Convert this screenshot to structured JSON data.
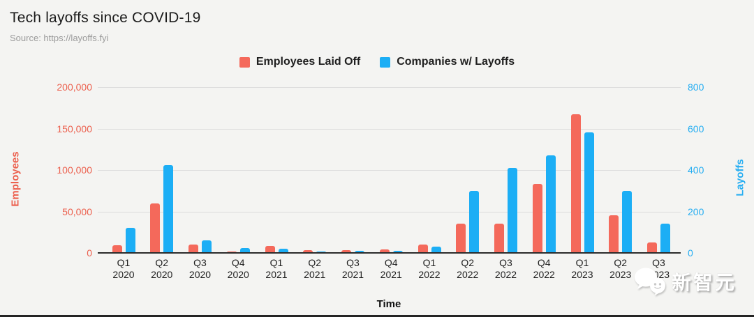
{
  "title": "Tech layoffs since COVID-19",
  "source": "Source: https://layoffs.fyi",
  "legend": [
    {
      "label": "Employees Laid Off",
      "color": "#f4695b"
    },
    {
      "label": "Companies w/ Layoffs",
      "color": "#1caef5"
    }
  ],
  "watermark": {
    "text": "新智元",
    "logo": "wechat-bubbles-icon"
  },
  "chart_data": {
    "type": "bar",
    "title": "Tech layoffs since COVID-19",
    "categories": [
      "Q1 2020",
      "Q2 2020",
      "Q3 2020",
      "Q4 2020",
      "Q1 2021",
      "Q2 2021",
      "Q3 2021",
      "Q4 2021",
      "Q1 2022",
      "Q2 2022",
      "Q3 2022",
      "Q4 2022",
      "Q1 2023",
      "Q2 2023",
      "Q3 2023"
    ],
    "series": [
      {
        "name": "Employees Laid Off",
        "axis": "left",
        "color": "#f4695b",
        "values": [
          9000,
          60000,
          10000,
          2000,
          8000,
          3000,
          3000,
          4000,
          10000,
          35000,
          35000,
          83000,
          167000,
          45000,
          13000
        ]
      },
      {
        "name": "Companies w/ Layoffs",
        "axis": "right",
        "color": "#1caef5",
        "values": [
          120,
          425,
          60,
          25,
          20,
          6,
          11,
          10,
          30,
          300,
          410,
          470,
          580,
          300,
          140
        ]
      }
    ],
    "left_axis": {
      "title": "Employees",
      "color": "#ec604e",
      "max": 200000,
      "ticks": [
        "0",
        "50,000",
        "100,000",
        "150,000",
        "200,000"
      ]
    },
    "right_axis": {
      "title": "Layoffs",
      "color": "#27aef2",
      "max": 800,
      "ticks": [
        "0",
        "200",
        "400",
        "600",
        "800"
      ]
    },
    "xlabel": "Time",
    "grid": true,
    "legend_position": "top"
  }
}
